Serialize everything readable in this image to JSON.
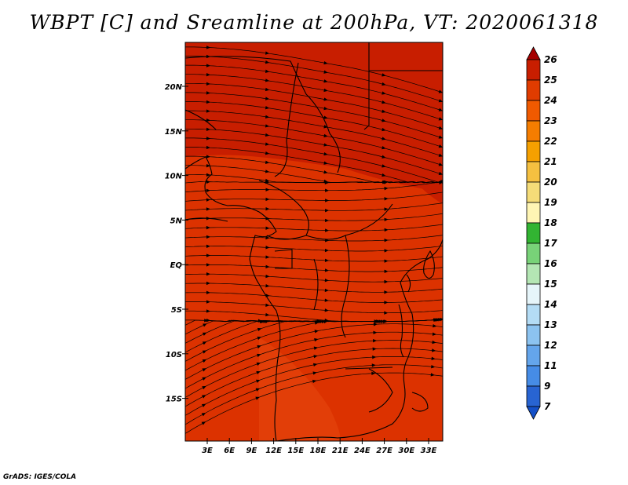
{
  "title": "WBPT [C] and Sreamline at 200hPa, VT: 2020061318",
  "credit": "GrADS: IGES/COLA",
  "map": {
    "lat_labels": [
      "20N",
      "15N",
      "10N",
      "5N",
      "EQ",
      "5S",
      "10S",
      "15S"
    ],
    "lon_labels": [
      "3E",
      "6E",
      "9E",
      "12E",
      "15E",
      "18E",
      "21E",
      "24E",
      "27E",
      "30E",
      "33E"
    ],
    "field_colors": {
      "dark": "#c81e00",
      "mid": "#dc3200",
      "light": "#e84a10"
    },
    "streamline_color": "#000000"
  },
  "colorbar": {
    "labels": [
      "26",
      "25",
      "24",
      "23",
      "22",
      "21",
      "20",
      "19",
      "18",
      "17",
      "16",
      "15",
      "14",
      "13",
      "12",
      "11",
      "9",
      "7"
    ],
    "colors": [
      "#a50000",
      "#c81e00",
      "#e03c00",
      "#f05a00",
      "#f57d00",
      "#f5a000",
      "#f5c040",
      "#f5dc78",
      "#fff5b4",
      "#32b432",
      "#78d278",
      "#b4e6b4",
      "#e6f5fa",
      "#b4dcf5",
      "#8cc3f0",
      "#64a5eb",
      "#468ce6",
      "#2864d2",
      "#1450c8"
    ]
  }
}
